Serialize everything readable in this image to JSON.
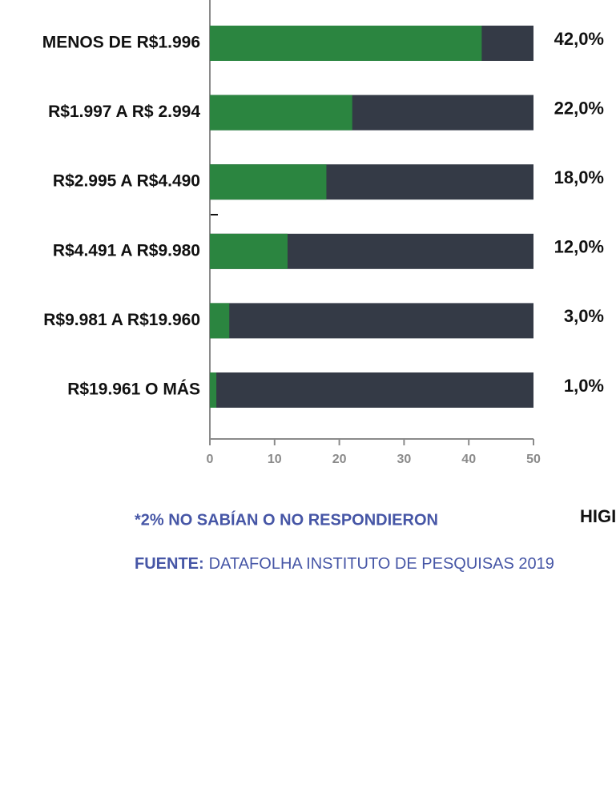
{
  "chart_data": {
    "type": "bar",
    "categories": [
      "MENOS DE R$1.996",
      "R$1.997 A R$ 2.994",
      "R$2.995 A R$4.490",
      "R$4.491 A R$9.980",
      "R$9.981 A R$19.960",
      "R$19.961 O MÁS"
    ],
    "values": [
      42,
      22,
      18,
      12,
      3,
      1
    ],
    "value_labels": [
      "42,0%",
      "22,0%",
      "18,0%",
      "12,0%",
      "3,0%",
      "1,0%"
    ],
    "color": "#2b8540",
    "track_color": "#343a46",
    "xlim": [
      0,
      50
    ],
    "xticks": [
      0,
      10,
      20,
      30,
      40,
      50
    ],
    "note": "*2% NO SABÍAN O NO RESPONDIERON",
    "source_label": "FUENTE:",
    "source": "DATAFOLHA INSTITUTO DE PESQUISAS 2019",
    "brand": "HIGI"
  }
}
